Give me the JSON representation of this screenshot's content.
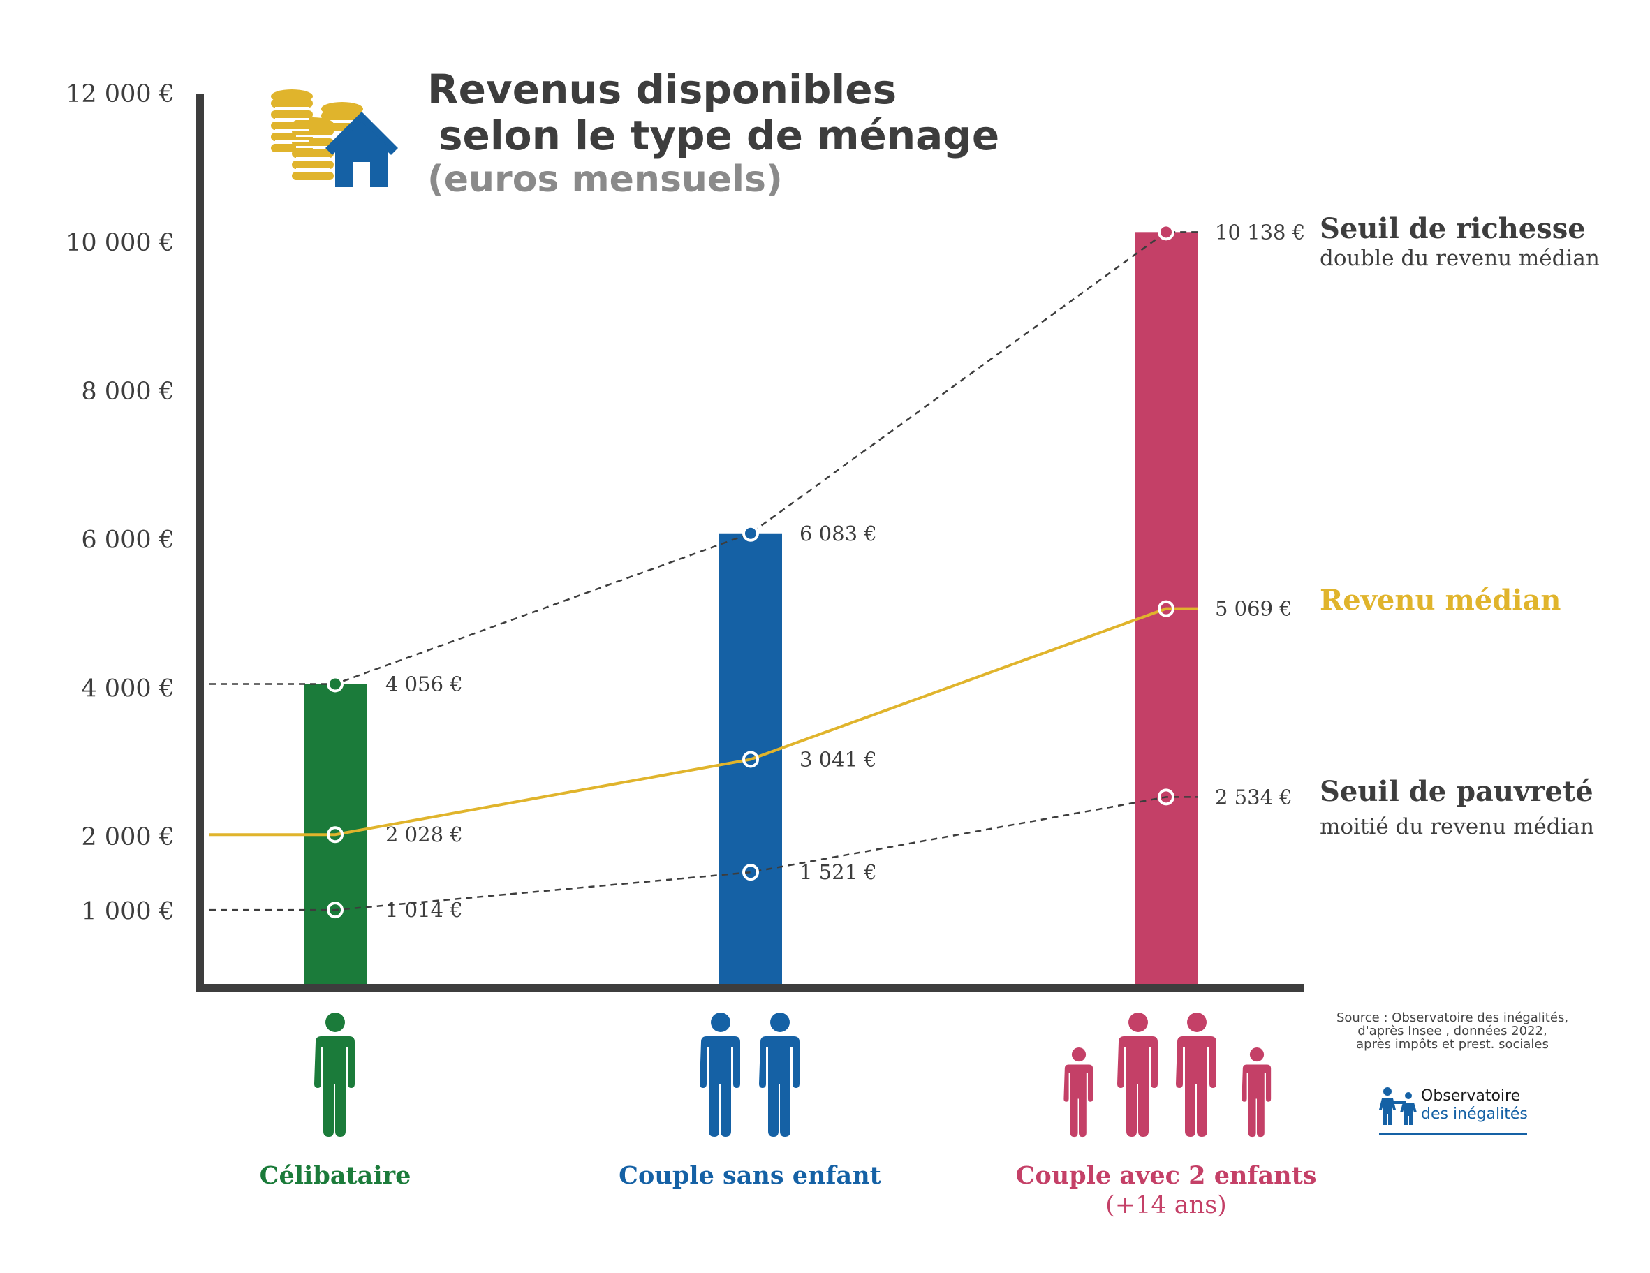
{
  "chart_data": {
    "type": "bar",
    "title_line1": "Revenus disponibles",
    "title_line2": "selon le type de ménage",
    "subtitle": "(euros mensuels)",
    "categories": [
      "Célibataire",
      "Couple sans enfant",
      "Couple avec 2 enfants"
    ],
    "category_sublabels": [
      "",
      "",
      "(+14 ans)"
    ],
    "bar_colors": [
      "#1b7b3a",
      "#1561a5",
      "#c44067"
    ],
    "values": [
      4056,
      6083,
      10138
    ],
    "ylim": [
      0,
      12000
    ],
    "y_ticks": [
      1000,
      2000,
      4000,
      6000,
      8000,
      10000,
      12000
    ],
    "y_tick_labels": [
      "1 000 €",
      "2 000 €",
      "4 000 €",
      "6 000 €",
      "8 000 €",
      "10 000 €",
      "12 000 €"
    ],
    "grid": false,
    "series": [
      {
        "name": "Seuil de richesse",
        "description": "double du revenu médian",
        "style": "dashed",
        "color": "#3d3d3d",
        "values": [
          4056,
          6083,
          10138
        ],
        "value_labels": [
          "4 056 €",
          "6 083 €",
          "10 138 €"
        ]
      },
      {
        "name": "Revenu médian",
        "description": "",
        "style": "solid",
        "color": "#e0b42c",
        "values": [
          2028,
          3041,
          5069
        ],
        "value_labels": [
          "2 028 €",
          "3 041 €",
          "5 069 €"
        ]
      },
      {
        "name": "Seuil de pauvreté",
        "description": "moitié du revenu médian",
        "style": "dashed",
        "color": "#3d3d3d",
        "values": [
          1014,
          1521,
          2534
        ],
        "value_labels": [
          "1 014 €",
          "1 521 €",
          "2 534 €"
        ]
      }
    ],
    "legend_placement": "right"
  },
  "source_lines": [
    "Source : Observatoire des inégalités,",
    "d'après Insee , données 2022,",
    "après impôts et prest. sociales"
  ],
  "logo": {
    "line1": "Observatoire",
    "line2": "des inégalités"
  },
  "colors": {
    "axis": "#3d3d3d",
    "gold": "#e0b42c",
    "blue": "#1561a5",
    "green": "#1b7b3a",
    "pink": "#c44067",
    "dark": "#3d3d3d"
  },
  "icons": [
    "coins-icon",
    "house-icon",
    "single-person-icon",
    "couple-icon",
    "family-icon",
    "logo-people-icon"
  ]
}
